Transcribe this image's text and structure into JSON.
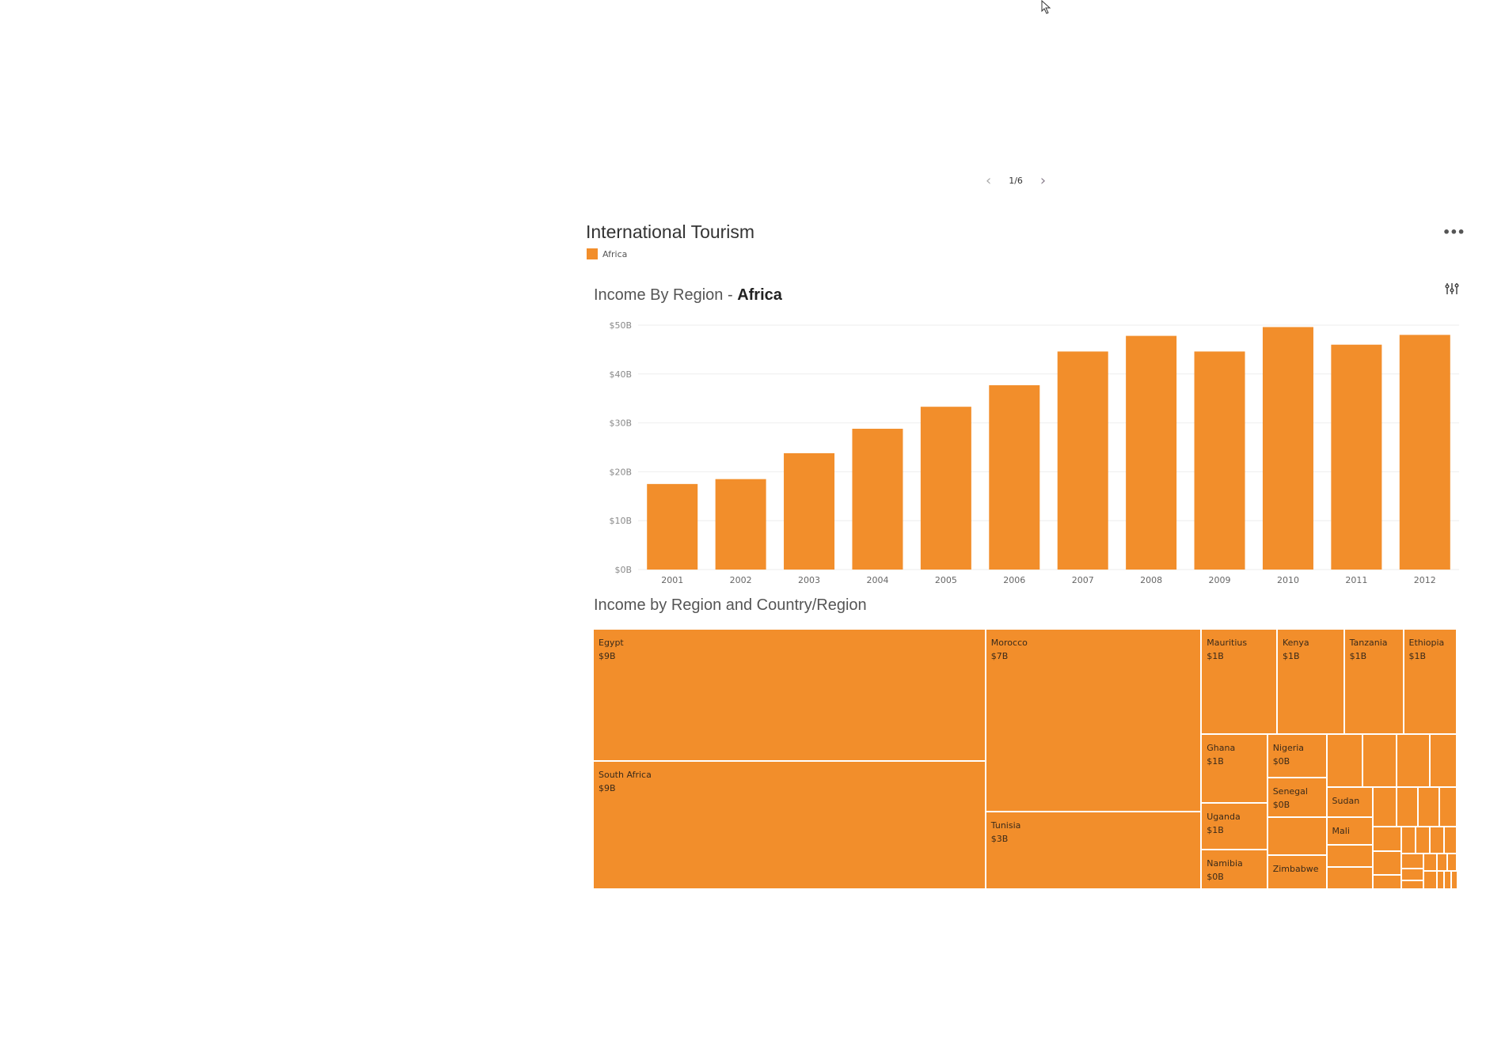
{
  "pager": {
    "label": "1/6",
    "prev": "‹",
    "next": "›"
  },
  "dashboard": {
    "title": "International Tourism",
    "legend": [
      {
        "label": "Africa",
        "color": "#F28E2B"
      }
    ],
    "more_label": "•••"
  },
  "chart_data": [
    {
      "type": "bar",
      "title_prefix": "Income By Region - ",
      "title_emphasis": "Africa",
      "categories": [
        "2001",
        "2002",
        "2003",
        "2004",
        "2005",
        "2006",
        "2007",
        "2008",
        "2009",
        "2010",
        "2011",
        "2012"
      ],
      "values": [
        17.5,
        18.5,
        23.8,
        28.8,
        33.3,
        37.7,
        44.6,
        47.8,
        44.6,
        49.6,
        46.0,
        48.0
      ],
      "units": "$B",
      "yticks": [
        "$0B",
        "$10B",
        "$20B",
        "$30B",
        "$40B",
        "$50B"
      ],
      "ylim": [
        0,
        50
      ],
      "color": "#F28E2B",
      "grid": true
    },
    {
      "type": "treemap",
      "title": "Income by Region and Country/Region",
      "color": "#F28E2B",
      "tiles": [
        {
          "name": "Egypt",
          "value": "$9B"
        },
        {
          "name": "South Africa",
          "value": "$9B"
        },
        {
          "name": "Morocco",
          "value": "$7B"
        },
        {
          "name": "Tunisia",
          "value": "$3B"
        },
        {
          "name": "Mauritius",
          "value": "$1B"
        },
        {
          "name": "Kenya",
          "value": "$1B"
        },
        {
          "name": "Tanzania",
          "value": "$1B"
        },
        {
          "name": "Ethiopia",
          "value": "$1B"
        },
        {
          "name": "Ghana",
          "value": "$1B"
        },
        {
          "name": "Uganda",
          "value": "$1B"
        },
        {
          "name": "Namibia",
          "value": "$0B"
        },
        {
          "name": "Nigeria",
          "value": "$0B"
        },
        {
          "name": "Senegal",
          "value": "$0B"
        },
        {
          "name": "Zimbabwe",
          "value": ""
        },
        {
          "name": "Sudan",
          "value": ""
        },
        {
          "name": "Mali",
          "value": ""
        }
      ]
    }
  ]
}
